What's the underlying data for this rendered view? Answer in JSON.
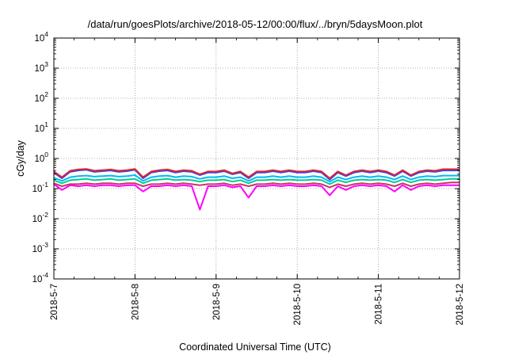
{
  "chart_data": {
    "type": "line",
    "title": "/data/run/goesPlots/archive/2018-05-12/00:00/flux/../bryn/5daysMoon.plot",
    "xlabel": "Coordinated Universal Time (UTC)",
    "ylabel": "cGy/day",
    "yscale": "log",
    "ylim": [
      0.0001,
      10000
    ],
    "xlim": [
      "2018-05-07",
      "2018-05-12"
    ],
    "grid": true,
    "legend": "none",
    "x_tick_labels": [
      "2018-5-7",
      "2018-5-8",
      "2018-5-9",
      "2018-5-10",
      "2018-5-11",
      "2018-5-12"
    ],
    "y_ticks": [
      {
        "base": "10",
        "exp": "-4",
        "value": 0.0001
      },
      {
        "base": "10",
        "exp": "-3",
        "value": 0.001
      },
      {
        "base": "10",
        "exp": "-2",
        "value": 0.01
      },
      {
        "base": "10",
        "exp": "-1",
        "value": 0.1
      },
      {
        "base": "10",
        "exp": "0",
        "value": 1
      },
      {
        "base": "10",
        "exp": "1",
        "value": 10
      },
      {
        "base": "10",
        "exp": "2",
        "value": 100
      },
      {
        "base": "10",
        "exp": "3",
        "value": 1000
      },
      {
        "base": "10",
        "exp": "4",
        "value": 10000
      }
    ],
    "x_days": [
      0,
      0.1,
      0.2,
      0.3,
      0.4,
      0.5,
      0.6,
      0.7,
      0.8,
      0.9,
      1.0,
      1.1,
      1.2,
      1.3,
      1.4,
      1.5,
      1.6,
      1.7,
      1.8,
      1.9,
      2.0,
      2.1,
      2.2,
      2.3,
      2.4,
      2.5,
      2.6,
      2.7,
      2.8,
      2.9,
      3.0,
      3.1,
      3.2,
      3.3,
      3.4,
      3.5,
      3.6,
      3.7,
      3.8,
      3.9,
      4.0,
      4.1,
      4.2,
      4.3,
      4.4,
      4.5,
      4.6,
      4.7,
      4.8,
      4.9,
      5.0
    ],
    "series": [
      {
        "color": "#ff00ff",
        "values": [
          0.14,
          0.09,
          0.13,
          0.12,
          0.13,
          0.12,
          0.13,
          0.13,
          0.12,
          0.13,
          0.13,
          0.08,
          0.12,
          0.12,
          0.13,
          0.12,
          0.13,
          0.12,
          0.02,
          0.12,
          0.12,
          0.13,
          0.11,
          0.12,
          0.05,
          0.12,
          0.12,
          0.13,
          0.12,
          0.13,
          0.12,
          0.12,
          0.13,
          0.12,
          0.06,
          0.12,
          0.09,
          0.12,
          0.13,
          0.12,
          0.13,
          0.12,
          0.08,
          0.13,
          0.09,
          0.12,
          0.13,
          0.12,
          0.13,
          0.13,
          0.13
        ]
      },
      {
        "color": "#cc3366",
        "values": [
          0.15,
          0.12,
          0.14,
          0.14,
          0.15,
          0.14,
          0.15,
          0.15,
          0.14,
          0.15,
          0.15,
          0.12,
          0.14,
          0.14,
          0.15,
          0.14,
          0.15,
          0.14,
          0.13,
          0.14,
          0.14,
          0.15,
          0.13,
          0.14,
          0.12,
          0.14,
          0.14,
          0.15,
          0.14,
          0.15,
          0.14,
          0.14,
          0.15,
          0.14,
          0.11,
          0.14,
          0.12,
          0.14,
          0.15,
          0.14,
          0.15,
          0.14,
          0.12,
          0.15,
          0.12,
          0.14,
          0.15,
          0.14,
          0.15,
          0.16,
          0.16
        ]
      },
      {
        "color": "#00cc99",
        "values": [
          0.19,
          0.15,
          0.19,
          0.2,
          0.21,
          0.19,
          0.2,
          0.21,
          0.19,
          0.2,
          0.21,
          0.15,
          0.19,
          0.2,
          0.21,
          0.19,
          0.2,
          0.19,
          0.17,
          0.19,
          0.19,
          0.2,
          0.17,
          0.19,
          0.15,
          0.19,
          0.19,
          0.2,
          0.19,
          0.2,
          0.19,
          0.19,
          0.2,
          0.19,
          0.14,
          0.19,
          0.16,
          0.19,
          0.2,
          0.19,
          0.2,
          0.19,
          0.16,
          0.2,
          0.16,
          0.19,
          0.2,
          0.19,
          0.2,
          0.21,
          0.21
        ]
      },
      {
        "color": "#00bbee",
        "values": [
          0.23,
          0.18,
          0.24,
          0.26,
          0.27,
          0.25,
          0.26,
          0.27,
          0.25,
          0.26,
          0.28,
          0.18,
          0.24,
          0.26,
          0.27,
          0.24,
          0.26,
          0.25,
          0.21,
          0.24,
          0.24,
          0.26,
          0.22,
          0.24,
          0.18,
          0.24,
          0.24,
          0.26,
          0.24,
          0.26,
          0.24,
          0.24,
          0.26,
          0.24,
          0.17,
          0.24,
          0.2,
          0.24,
          0.26,
          0.24,
          0.26,
          0.24,
          0.2,
          0.26,
          0.2,
          0.24,
          0.26,
          0.25,
          0.27,
          0.27,
          0.27
        ]
      },
      {
        "color": "#3344ee",
        "values": [
          0.34,
          0.22,
          0.36,
          0.4,
          0.42,
          0.36,
          0.38,
          0.4,
          0.36,
          0.38,
          0.42,
          0.22,
          0.34,
          0.38,
          0.4,
          0.34,
          0.38,
          0.36,
          0.28,
          0.34,
          0.34,
          0.38,
          0.3,
          0.34,
          0.22,
          0.34,
          0.34,
          0.38,
          0.34,
          0.38,
          0.34,
          0.34,
          0.38,
          0.34,
          0.2,
          0.34,
          0.26,
          0.34,
          0.38,
          0.34,
          0.38,
          0.34,
          0.26,
          0.38,
          0.26,
          0.34,
          0.38,
          0.36,
          0.4,
          0.4,
          0.4
        ]
      },
      {
        "color": "#e0242c",
        "values": [
          0.37,
          0.24,
          0.39,
          0.43,
          0.45,
          0.39,
          0.41,
          0.43,
          0.39,
          0.41,
          0.45,
          0.24,
          0.37,
          0.41,
          0.43,
          0.37,
          0.41,
          0.39,
          0.3,
          0.37,
          0.37,
          0.41,
          0.32,
          0.37,
          0.24,
          0.37,
          0.37,
          0.41,
          0.37,
          0.41,
          0.37,
          0.37,
          0.41,
          0.37,
          0.22,
          0.37,
          0.28,
          0.37,
          0.41,
          0.37,
          0.41,
          0.37,
          0.28,
          0.41,
          0.28,
          0.37,
          0.41,
          0.39,
          0.44,
          0.44,
          0.44
        ]
      }
    ]
  }
}
